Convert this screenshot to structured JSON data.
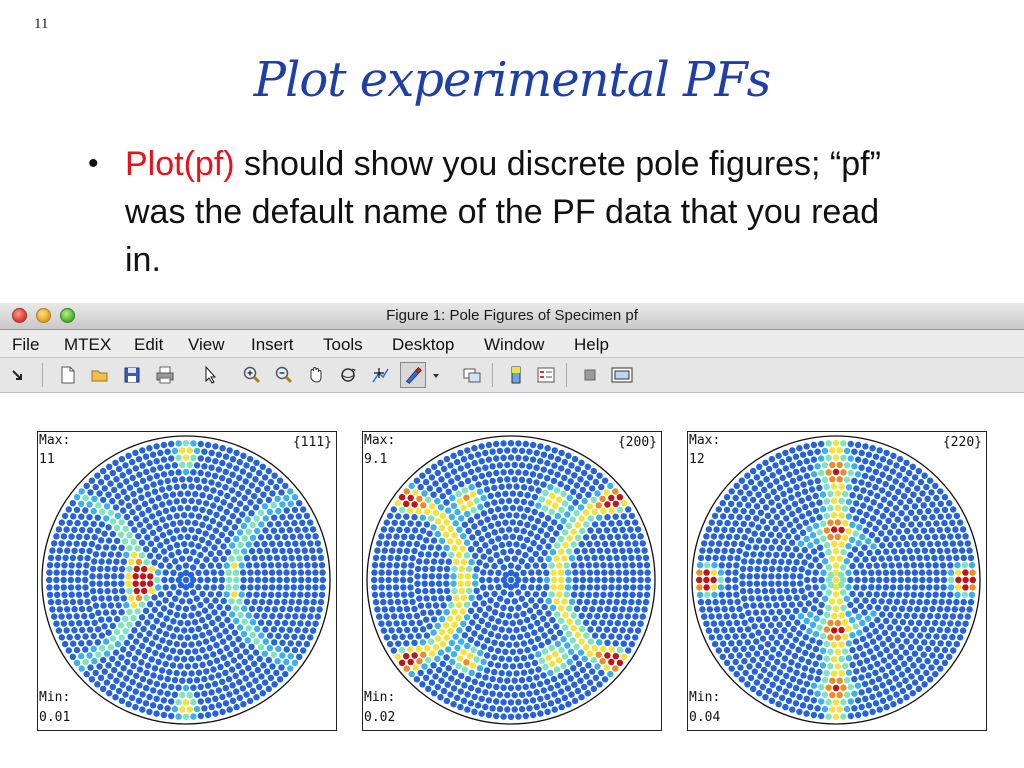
{
  "slide": {
    "number": "11",
    "title": "Plot experimental PFs",
    "bullet": {
      "marker": "•",
      "code": "Plot(pf)",
      "text": " should show you discrete pole figures; “pf” was the default name of the PF data that you read in."
    }
  },
  "window": {
    "title": "Figure 1: Pole Figures of Specimen pf",
    "menu": [
      "File",
      "MTEX",
      "Edit",
      "View",
      "Insert",
      "Tools",
      "Desktop",
      "Window",
      "Help"
    ],
    "toolbar_icons": [
      "dock-arrow-icon",
      "new-figure-icon",
      "open-folder-icon",
      "save-icon",
      "print-icon",
      "pointer-icon",
      "zoom-in-icon",
      "zoom-out-icon",
      "pan-hand-icon",
      "rotate-3d-icon",
      "data-cursor-icon",
      "brush-icon",
      "brush-dropdown-icon",
      "link-plot-icon",
      "colorbar-icon",
      "legend-icon",
      "hide-plot-tools-icon",
      "show-plot-tools-icon"
    ]
  },
  "pole_figures": [
    {
      "label": "{111}",
      "max_label": "Max:",
      "max": "11",
      "min_label": "Min:",
      "min": "0.01",
      "pattern": "111"
    },
    {
      "label": "{200}",
      "max_label": "Max:",
      "max": "9.1",
      "min_label": "Min:",
      "min": "0.02",
      "pattern": "200"
    },
    {
      "label": "{220}",
      "max_label": "Max:",
      "max": "12",
      "min_label": "Min:",
      "min": "0.04",
      "pattern": "220"
    }
  ],
  "colors": {
    "title": "#1f3fa8",
    "code": "#e8121a",
    "colormap": [
      "#1a2ea6",
      "#2563d8",
      "#3bb0ee",
      "#7fe3c0",
      "#f5e23a",
      "#f08a24",
      "#c0131a"
    ]
  }
}
